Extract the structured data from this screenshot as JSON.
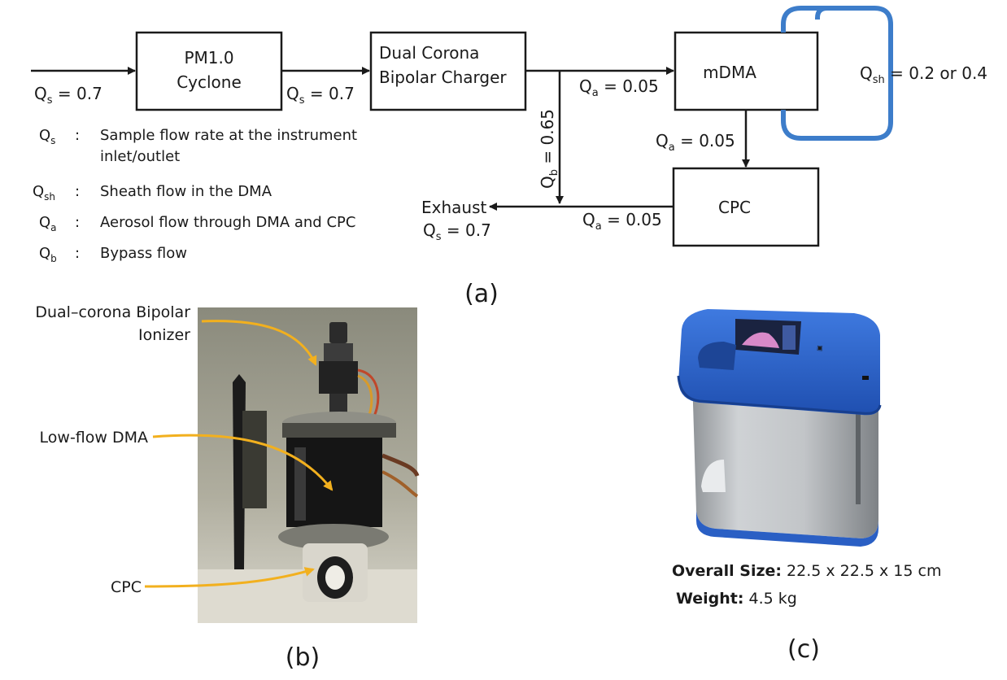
{
  "diagram_a": {
    "panel_label": "(a)",
    "boxes": {
      "cyclone": [
        "PM1.0",
        "Cyclone"
      ],
      "charger": [
        "Dual Corona",
        "Bipolar Charger"
      ],
      "mdma": "mDMA",
      "cpc": "CPC"
    },
    "flows": {
      "inlet": {
        "sym": "Q",
        "sub": "s",
        "val": " = 0.7"
      },
      "cyclone_out": {
        "sym": "Q",
        "sub": "s",
        "val": " = 0.7"
      },
      "to_mdma": {
        "sym": "Q",
        "sub": "a",
        "val": " = 0.05"
      },
      "mdma_to_cpc": {
        "sym": "Q",
        "sub": "a",
        "val": " = 0.05"
      },
      "cpc_out": {
        "sym": "Q",
        "sub": "a",
        "val": " = 0.05"
      },
      "bypass": {
        "sym": "Q",
        "sub": "b",
        "val": " = 0.65"
      },
      "sheath": {
        "sym": "Q",
        "sub": "sh",
        "val": " = 0.2 or 0.4"
      },
      "exhaust_label": "Exhaust",
      "exhaust": {
        "sym": "Q",
        "sub": "s",
        "val": " = 0.7"
      }
    },
    "legend": [
      {
        "sym": "Q",
        "sub": "s",
        "colon": ":",
        "lines": [
          "Sample flow rate at the instrument",
          "inlet/outlet"
        ]
      },
      {
        "sym": "Q",
        "sub": "sh",
        "colon": ":",
        "lines": [
          "Sheath flow in the DMA"
        ]
      },
      {
        "sym": "Q",
        "sub": "a",
        "colon": ":",
        "lines": [
          "Aerosol flow through DMA and CPC"
        ]
      },
      {
        "sym": "Q",
        "sub": "b",
        "colon": ":",
        "lines": [
          "Bypass flow"
        ]
      }
    ],
    "colors": {
      "sheath_loop": "#3d7dca",
      "line": "#1a1a1a"
    }
  },
  "photo_b": {
    "panel_label": "(b)",
    "annotations": [
      {
        "lines": [
          "Dual–corona Bipolar",
          "Ionizer"
        ]
      },
      {
        "lines": [
          "Low-flow DMA"
        ]
      },
      {
        "lines": [
          "CPC"
        ]
      }
    ],
    "colors": {
      "callout": "#f2b01e"
    }
  },
  "photo_c": {
    "panel_label": "(c)",
    "specs": [
      {
        "label": "Overall Size:",
        "value": " 22.5 x 22.5 x 15 cm"
      },
      {
        "label": "Weight:",
        "value": " 4.5 kg"
      }
    ],
    "colors": {
      "lid": "#2a5fc4",
      "body": "#b9bcc0"
    }
  }
}
